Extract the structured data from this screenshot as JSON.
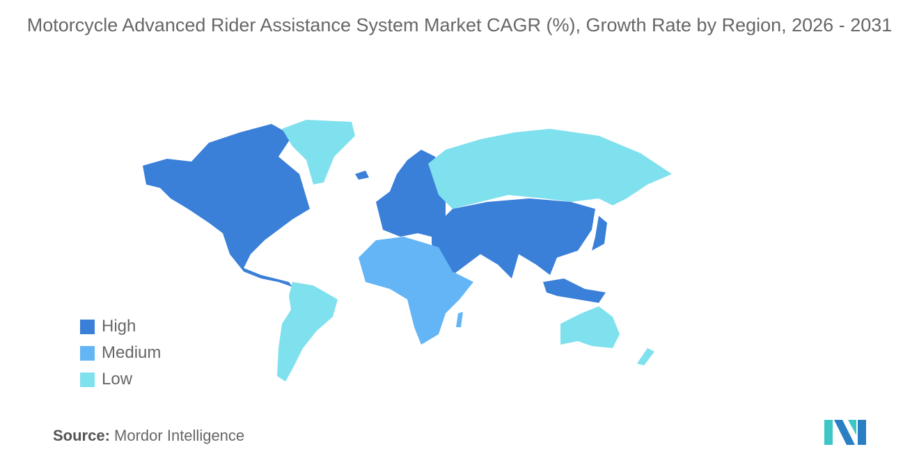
{
  "title": "Motorcycle Advanced Rider Assistance System Market CAGR (%), Growth Rate by Region, 2026 - 2031",
  "legend": [
    {
      "label": "High",
      "color": "#3a7fd8"
    },
    {
      "label": "Medium",
      "color": "#63b5f6"
    },
    {
      "label": "Low",
      "color": "#7fe0ee"
    }
  ],
  "regions": {
    "north_america": "High",
    "europe": "High",
    "asia_pacific_core": "High",
    "middle_east": "High",
    "africa": "Medium",
    "south_america": "Low",
    "russia": "Low",
    "greenland": "Low",
    "australia_nz": "Low"
  },
  "source": {
    "label": "Source:",
    "value": "Mordor Intelligence"
  },
  "logo_text": "MI"
}
